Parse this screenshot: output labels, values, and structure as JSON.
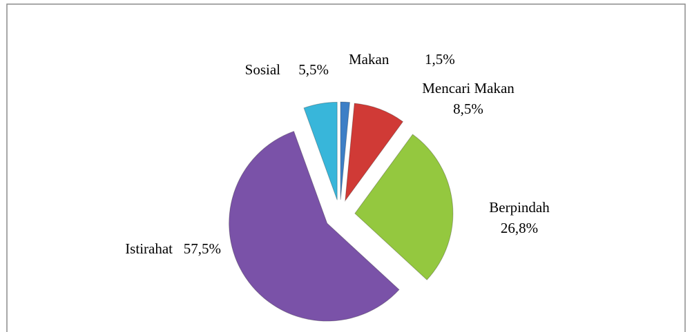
{
  "chart_data": {
    "type": "pie",
    "categories": [
      "Makan",
      "Mencari Makan",
      "Berpindah",
      "Istirahat",
      "Sosial"
    ],
    "values": [
      1.5,
      8.5,
      26.8,
      57.5,
      5.5
    ],
    "value_labels": [
      "1,5%",
      "8,5%",
      "26,8%",
      "57,5%",
      "5,5%"
    ],
    "colors": [
      "#3d7fc6",
      "#d03a36",
      "#94c83f",
      "#7a52a8",
      "#38b6da"
    ]
  }
}
